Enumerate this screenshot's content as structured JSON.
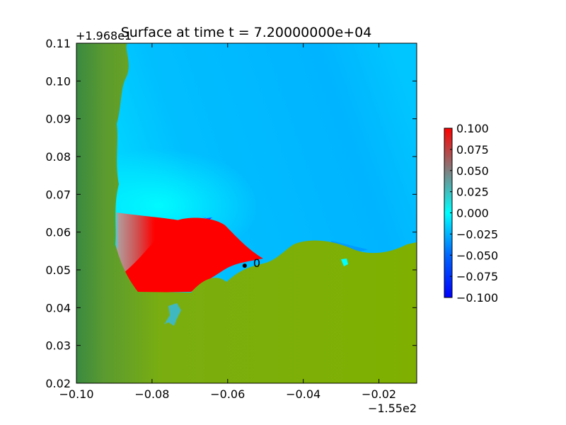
{
  "chart_data": {
    "type": "heatmap",
    "title": "Surface at time t = 7.20000000e+04",
    "x_offset_label": "−1.55e2",
    "y_offset_label": "+1.968e1",
    "xlim": [
      -0.1,
      -0.01
    ],
    "ylim": [
      0.02,
      0.11
    ],
    "x_ticks": [
      "−0.10",
      "−0.08",
      "−0.06",
      "−0.04",
      "−0.02"
    ],
    "x_tick_values": [
      -0.1,
      -0.08,
      -0.06,
      -0.04,
      -0.02
    ],
    "y_ticks": [
      "0.02",
      "0.03",
      "0.04",
      "0.05",
      "0.06",
      "0.07",
      "0.08",
      "0.09",
      "0.10",
      "0.11"
    ],
    "y_tick_values": [
      0.02,
      0.03,
      0.04,
      0.05,
      0.06,
      0.07,
      0.08,
      0.09,
      0.1,
      0.11
    ],
    "colorbar": {
      "min": -0.1,
      "max": 0.1,
      "ticks": [
        "0.100",
        "0.075",
        "0.050",
        "0.025",
        "0.000",
        "−0.025",
        "−0.050",
        "−0.075",
        "−0.100"
      ],
      "tick_values": [
        0.1,
        0.075,
        0.05,
        0.025,
        0.0,
        -0.025,
        -0.05,
        -0.075,
        -0.1
      ],
      "colors": {
        "high": "#ff0000",
        "mid_high": "#808080",
        "zero": "#00ffff",
        "low": "#0000ff"
      }
    },
    "land_color": "#7fb000",
    "gauge": {
      "label": "0",
      "x": -0.0555,
      "y": 0.0511
    }
  }
}
